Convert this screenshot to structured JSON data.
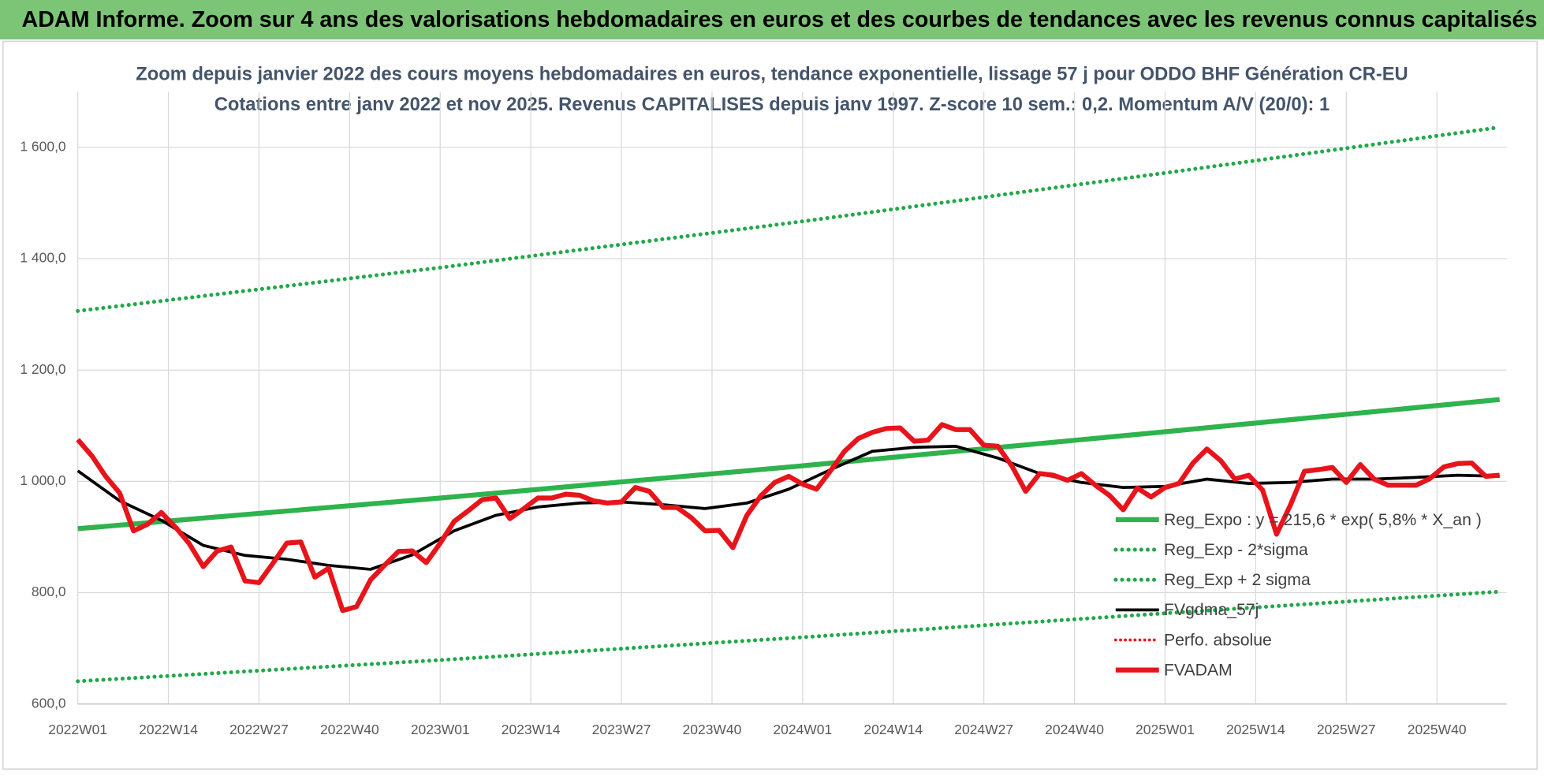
{
  "header": {
    "title": "ADAM Informe. Zoom sur 4 ans des valorisations hebdomadaires en euros et des courbes de tendances avec les revenus connus capitalisés"
  },
  "chart_data": {
    "type": "line",
    "title": "Zoom depuis janvier 2022 des cours moyens hebdomadaires en euros, tendance exponentielle, lissage 57 j pour ODDO BHF Génération CR-EU",
    "subtitle": "Cotations entre janv 2022 et nov 2025. Revenus CAPITALISES depuis janv 1997. Z-score 10 sem.: 0,2. Momentum A/V (20/0): 1",
    "xlim": [
      0,
      205
    ],
    "xticks": [
      {
        "value": 0,
        "label": "2022W01"
      },
      {
        "value": 13,
        "label": "2022W14"
      },
      {
        "value": 26,
        "label": "2022W27"
      },
      {
        "value": 39,
        "label": "2022W40"
      },
      {
        "value": 52,
        "label": "2023W01"
      },
      {
        "value": 65,
        "label": "2023W14"
      },
      {
        "value": 78,
        "label": "2023W27"
      },
      {
        "value": 91,
        "label": "2023W40"
      },
      {
        "value": 104,
        "label": "2024W01"
      },
      {
        "value": 117,
        "label": "2024W14"
      },
      {
        "value": 130,
        "label": "2024W27"
      },
      {
        "value": 143,
        "label": "2024W40"
      },
      {
        "value": 156,
        "label": "2025W01"
      },
      {
        "value": 169,
        "label": "2025W14"
      },
      {
        "value": 182,
        "label": "2025W27"
      },
      {
        "value": 195,
        "label": "2025W40"
      }
    ],
    "ylim": [
      600,
      1700
    ],
    "yticks": [
      {
        "value": 600,
        "label": "600,0"
      },
      {
        "value": 800,
        "label": "800,0"
      },
      {
        "value": 1000,
        "label": "1 000,0"
      },
      {
        "value": 1200,
        "label": "1 200,0"
      },
      {
        "value": 1400,
        "label": "1 400,0"
      },
      {
        "value": 1600,
        "label": "1 600,0"
      }
    ],
    "grid": true,
    "legend": "right",
    "series": [
      {
        "name": "Reg_Expo : y = 215,6 * exp( 5,8% *  X_an )",
        "color": "#2eb34d",
        "style": "solid",
        "width": 5,
        "x": [
          0,
          52,
          104,
          156,
          204
        ],
        "values": [
          915,
          970,
          1028,
          1089,
          1147
        ]
      },
      {
        "name": "Reg_Exp - 2*sigma",
        "color": "#22a84a",
        "style": "dotted",
        "width": 4,
        "x": [
          0,
          52,
          104,
          156,
          204
        ],
        "values": [
          641,
          679,
          720,
          763,
          802
        ]
      },
      {
        "name": "Reg_Exp + 2 sigma",
        "color": "#22a84a",
        "style": "dotted",
        "width": 4,
        "x": [
          0,
          52,
          104,
          156,
          204
        ],
        "values": [
          1306,
          1384,
          1467,
          1554,
          1636
        ]
      },
      {
        "name": "FVgdma_57j",
        "color": "#000000",
        "style": "solid",
        "width": 3,
        "x": [
          0,
          6,
          12,
          18,
          24,
          30,
          36,
          42,
          48,
          54,
          60,
          66,
          72,
          78,
          84,
          90,
          96,
          102,
          108,
          114,
          120,
          126,
          132,
          138,
          144,
          150,
          156,
          162,
          168,
          174,
          180,
          186,
          192,
          198,
          204
        ],
        "values": [
          1019,
          965,
          930,
          885,
          867,
          860,
          849,
          842,
          868,
          911,
          939,
          954,
          961,
          963,
          958,
          951,
          961,
          986,
          1021,
          1054,
          1061,
          1063,
          1042,
          1014,
          998,
          989,
          991,
          1004,
          996,
          998,
          1004,
          1004,
          1007,
          1011,
          1009
        ]
      },
      {
        "name": "Perfo. absolue",
        "color": "#e8141b",
        "style": "dotted",
        "width": 3,
        "x": [],
        "values": []
      },
      {
        "name": "FVADAM",
        "color": "#e8141b",
        "style": "solid",
        "width": 5,
        "x": [
          0,
          2,
          4,
          6,
          8,
          10,
          12,
          14,
          16,
          18,
          20,
          22,
          24,
          26,
          28,
          30,
          32,
          34,
          36,
          38,
          40,
          42,
          44,
          46,
          48,
          50,
          52,
          54,
          56,
          58,
          60,
          62,
          64,
          66,
          68,
          70,
          72,
          74,
          76,
          78,
          80,
          82,
          84,
          86,
          88,
          90,
          92,
          94,
          96,
          98,
          100,
          102,
          104,
          106,
          108,
          110,
          112,
          114,
          116,
          118,
          120,
          122,
          124,
          126,
          128,
          130,
          132,
          134,
          136,
          138,
          140,
          142,
          144,
          146,
          148,
          150,
          152,
          154,
          156,
          158,
          160,
          162,
          164,
          166,
          168,
          170,
          172,
          174,
          176,
          178,
          180,
          182,
          184,
          186,
          188,
          190,
          192,
          194,
          196,
          198,
          200,
          202,
          204
        ],
        "values": [
          1075,
          1046,
          1009,
          979,
          911,
          923,
          944,
          918,
          888,
          847,
          875,
          882,
          821,
          818,
          853,
          889,
          891,
          828,
          844,
          768,
          775,
          823,
          849,
          874,
          875,
          854,
          889,
          928,
          947,
          967,
          970,
          933,
          951,
          970,
          970,
          977,
          975,
          965,
          961,
          963,
          989,
          982,
          953,
          953,
          935,
          911,
          912,
          881,
          939,
          974,
          998,
          1009,
          995,
          986,
          1019,
          1054,
          1077,
          1088,
          1095,
          1096,
          1072,
          1074,
          1102,
          1093,
          1093,
          1065,
          1063,
          1028,
          982,
          1014,
          1011,
          1002,
          1014,
          993,
          975,
          949,
          988,
          972,
          989,
          996,
          1033,
          1058,
          1037,
          1004,
          1011,
          984,
          905,
          958,
          1018,
          1021,
          1025,
          998,
          1030,
          1004,
          993,
          993,
          993,
          1005,
          1026,
          1032,
          1033,
          1009,
          1011
        ]
      }
    ]
  }
}
